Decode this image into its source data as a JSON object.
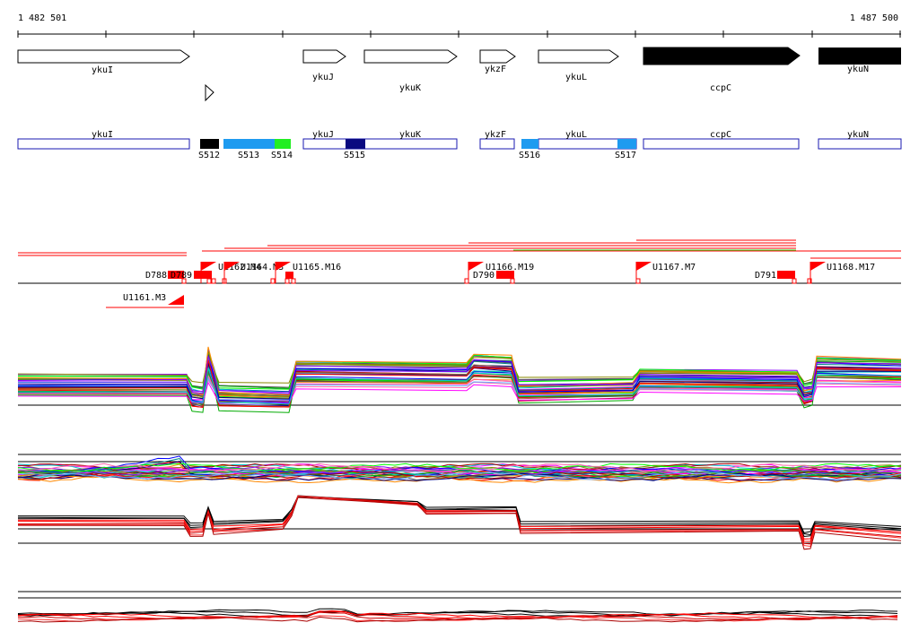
{
  "coords": {
    "start": "1 482 501",
    "end": "1 487 500"
  },
  "genes": [
    {
      "label": "ykuI",
      "filled": false
    },
    {
      "label": "ykuJ",
      "filled": false
    },
    {
      "label": "ykuK",
      "filled": false
    },
    {
      "label": "ykzF",
      "filled": false
    },
    {
      "label": "ykuL",
      "filled": false
    },
    {
      "label": "ccpC",
      "filled": true
    },
    {
      "label": "ykuN",
      "filled": true
    }
  ],
  "features": [
    {
      "label": "ykuI"
    },
    {
      "label": "ykuJ"
    },
    {
      "label": "ykuK"
    },
    {
      "label": "ykzF"
    },
    {
      "label": "ykuL"
    },
    {
      "label": "ccpC"
    },
    {
      "label": "ykuN"
    }
  ],
  "segments": [
    {
      "label": "S512",
      "color": "#000000"
    },
    {
      "label": "S513",
      "color": "#1e9bf0"
    },
    {
      "label": "S514",
      "color": "#22ee22"
    },
    {
      "label": "S515",
      "color": "#0a0a80"
    },
    {
      "label": "S516",
      "color": "#1e9bf0"
    },
    {
      "label": "S517",
      "color": "#1e9bf0"
    }
  ],
  "markers": [
    {
      "label": "D788"
    },
    {
      "label": "D789"
    },
    {
      "label": "U1162.M4"
    },
    {
      "label": "U1164.M3"
    },
    {
      "label": "U1165.M16"
    },
    {
      "label": "U1166.M19"
    },
    {
      "label": "D790"
    },
    {
      "label": "U1167.M7"
    },
    {
      "label": "D791"
    },
    {
      "label": "U1168.M17"
    },
    {
      "label": "U1161.M3"
    }
  ],
  "colors": {
    "accent": "#ff0000",
    "outline": "#1a1ab0",
    "lime": "#22ee22"
  }
}
